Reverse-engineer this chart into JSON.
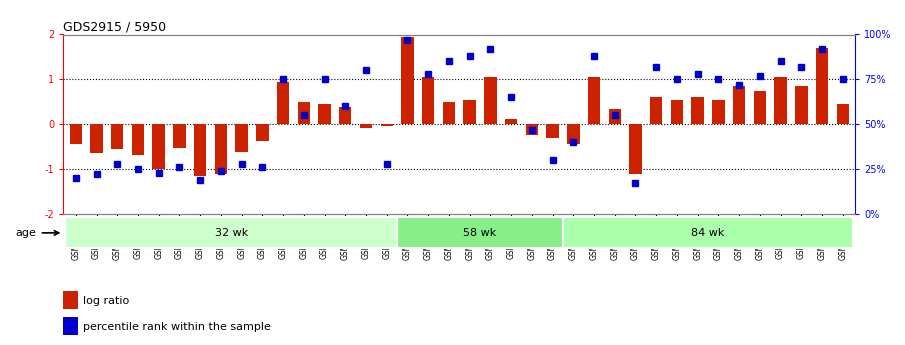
{
  "title": "GDS2915 / 5950",
  "samples": [
    "GSM97277",
    "GSM97278",
    "GSM97279",
    "GSM97280",
    "GSM97281",
    "GSM97282",
    "GSM97283",
    "GSM97284",
    "GSM97285",
    "GSM97286",
    "GSM97287",
    "GSM97288",
    "GSM97289",
    "GSM97290",
    "GSM97291",
    "GSM97292",
    "GSM97293",
    "GSM97294",
    "GSM97295",
    "GSM97296",
    "GSM97297",
    "GSM97298",
    "GSM97299",
    "GSM97300",
    "GSM97301",
    "GSM97302",
    "GSM97303",
    "GSM97304",
    "GSM97305",
    "GSM97306",
    "GSM97307",
    "GSM97308",
    "GSM97309",
    "GSM97310",
    "GSM97311",
    "GSM97312",
    "GSM97313",
    "GSM97314"
  ],
  "log_ratio": [
    -0.45,
    -0.65,
    -0.55,
    -0.68,
    -1.0,
    -0.52,
    -1.15,
    -1.1,
    -0.62,
    -0.38,
    0.95,
    0.5,
    0.45,
    0.38,
    -0.08,
    -0.05,
    1.95,
    1.05,
    0.5,
    0.55,
    1.05,
    0.12,
    -0.25,
    -0.3,
    -0.45,
    1.05,
    0.35,
    -1.1,
    0.6,
    0.55,
    0.6,
    0.55,
    0.85,
    0.75,
    1.05,
    0.85,
    1.7,
    0.45
  ],
  "percentile_rank": [
    20,
    22,
    28,
    25,
    23,
    26,
    19,
    24,
    28,
    26,
    75,
    55,
    75,
    60,
    80,
    28,
    97,
    78,
    85,
    88,
    92,
    65,
    47,
    30,
    40,
    88,
    55,
    17,
    82,
    75,
    78,
    75,
    72,
    77,
    85,
    82,
    92,
    75
  ],
  "groups": [
    {
      "label": "32 wk",
      "start": 0,
      "end": 15,
      "color": "#ccffcc"
    },
    {
      "label": "58 wk",
      "start": 16,
      "end": 23,
      "color": "#88ee88"
    },
    {
      "label": "84 wk",
      "start": 24,
      "end": 37,
      "color": "#aaffaa"
    }
  ],
  "bar_color": "#cc2200",
  "dot_color": "#0000cc",
  "ylim": [
    -2,
    2
  ],
  "y_left_ticks": [
    -2,
    -1,
    0,
    1,
    2
  ],
  "y_left_labels": [
    "-2",
    "-1",
    "0",
    "1",
    "2"
  ],
  "y_right_ticks": [
    0,
    25,
    50,
    75,
    100
  ],
  "y_right_labels": [
    "0%",
    "25%",
    "50%",
    "75%",
    "100%"
  ],
  "dotted_lines": [
    -1,
    0,
    1
  ],
  "age_label": "age",
  "legend": [
    {
      "color": "#cc2200",
      "label": "log ratio"
    },
    {
      "color": "#0000cc",
      "label": "percentile rank within the sample"
    }
  ]
}
